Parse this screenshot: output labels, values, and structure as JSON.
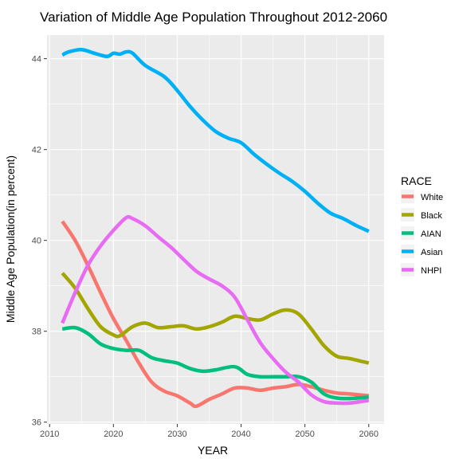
{
  "chart_data": {
    "type": "line",
    "title": "Variation of Middle Age Population Throughout 2012-2060",
    "xlabel": "YEAR",
    "ylabel": "Middle Age Population(in percent)",
    "xlim": [
      2009.6,
      2062.4
    ],
    "ylim": [
      35.96,
      44.52
    ],
    "x_ticks": [
      2010,
      2020,
      2030,
      2040,
      2050,
      2060
    ],
    "y_ticks": [
      36,
      38,
      40,
      42,
      44
    ],
    "x_tick_labels": [
      "2010",
      "2020",
      "2030",
      "2040",
      "2050",
      "2060"
    ],
    "y_tick_labels": [
      "36",
      "38",
      "40",
      "42",
      "44"
    ],
    "grid": true,
    "legend": {
      "title": "RACE",
      "position": "right"
    },
    "series": [
      {
        "name": "White",
        "color": "#F8766D",
        "points": [
          [
            2012,
            40.42
          ],
          [
            2014,
            40.0
          ],
          [
            2016,
            39.45
          ],
          [
            2018,
            38.85
          ],
          [
            2020,
            38.28
          ],
          [
            2022,
            37.8
          ],
          [
            2024,
            37.3
          ],
          [
            2026,
            36.88
          ],
          [
            2028,
            36.68
          ],
          [
            2030,
            36.58
          ],
          [
            2032,
            36.42
          ],
          [
            2033,
            36.35
          ],
          [
            2035,
            36.5
          ],
          [
            2037,
            36.62
          ],
          [
            2039,
            36.75
          ],
          [
            2041,
            36.75
          ],
          [
            2043,
            36.7
          ],
          [
            2045,
            36.75
          ],
          [
            2047,
            36.78
          ],
          [
            2049,
            36.83
          ],
          [
            2051,
            36.78
          ],
          [
            2053,
            36.7
          ],
          [
            2055,
            36.64
          ],
          [
            2057,
            36.62
          ],
          [
            2060,
            36.58
          ]
        ]
      },
      {
        "name": "Black",
        "color": "#A3A500",
        "points": [
          [
            2012,
            39.28
          ],
          [
            2014,
            38.95
          ],
          [
            2016,
            38.5
          ],
          [
            2018,
            38.1
          ],
          [
            2020,
            37.92
          ],
          [
            2021,
            37.9
          ],
          [
            2023,
            38.1
          ],
          [
            2025,
            38.18
          ],
          [
            2027,
            38.08
          ],
          [
            2029,
            38.1
          ],
          [
            2031,
            38.12
          ],
          [
            2033,
            38.05
          ],
          [
            2035,
            38.1
          ],
          [
            2037,
            38.2
          ],
          [
            2039,
            38.33
          ],
          [
            2041,
            38.28
          ],
          [
            2043,
            38.25
          ],
          [
            2045,
            38.38
          ],
          [
            2047,
            38.47
          ],
          [
            2049,
            38.38
          ],
          [
            2051,
            38.05
          ],
          [
            2053,
            37.68
          ],
          [
            2055,
            37.45
          ],
          [
            2057,
            37.4
          ],
          [
            2060,
            37.3
          ]
        ]
      },
      {
        "name": "AIAN",
        "color": "#00BF7D",
        "points": [
          [
            2012,
            38.05
          ],
          [
            2014,
            38.08
          ],
          [
            2016,
            37.95
          ],
          [
            2018,
            37.72
          ],
          [
            2020,
            37.62
          ],
          [
            2022,
            37.58
          ],
          [
            2024,
            37.58
          ],
          [
            2026,
            37.42
          ],
          [
            2028,
            37.35
          ],
          [
            2030,
            37.3
          ],
          [
            2032,
            37.18
          ],
          [
            2034,
            37.12
          ],
          [
            2036,
            37.15
          ],
          [
            2039,
            37.22
          ],
          [
            2041,
            37.05
          ],
          [
            2043,
            37.0
          ],
          [
            2045,
            37.0
          ],
          [
            2047,
            37.0
          ],
          [
            2049,
            37.0
          ],
          [
            2051,
            36.88
          ],
          [
            2053,
            36.62
          ],
          [
            2055,
            36.53
          ],
          [
            2057,
            36.52
          ],
          [
            2060,
            36.55
          ]
        ]
      },
      {
        "name": "Asian",
        "color": "#00B0F6",
        "points": [
          [
            2012,
            44.08
          ],
          [
            2013,
            44.15
          ],
          [
            2015,
            44.2
          ],
          [
            2017,
            44.12
          ],
          [
            2019,
            44.05
          ],
          [
            2020,
            44.12
          ],
          [
            2021,
            44.1
          ],
          [
            2022,
            44.15
          ],
          [
            2023,
            44.12
          ],
          [
            2025,
            43.85
          ],
          [
            2028,
            43.6
          ],
          [
            2030,
            43.3
          ],
          [
            2032,
            42.95
          ],
          [
            2034,
            42.65
          ],
          [
            2036,
            42.4
          ],
          [
            2038,
            42.25
          ],
          [
            2040,
            42.15
          ],
          [
            2042,
            41.9
          ],
          [
            2044,
            41.68
          ],
          [
            2046,
            41.48
          ],
          [
            2048,
            41.3
          ],
          [
            2050,
            41.08
          ],
          [
            2052,
            40.82
          ],
          [
            2054,
            40.6
          ],
          [
            2056,
            40.48
          ],
          [
            2058,
            40.33
          ],
          [
            2060,
            40.2
          ]
        ]
      },
      {
        "name": "NHPI",
        "color": "#E76BF3",
        "points": [
          [
            2012,
            38.18
          ],
          [
            2014,
            38.85
          ],
          [
            2016,
            39.45
          ],
          [
            2018,
            39.88
          ],
          [
            2020,
            40.22
          ],
          [
            2022,
            40.5
          ],
          [
            2023,
            40.48
          ],
          [
            2025,
            40.32
          ],
          [
            2027,
            40.08
          ],
          [
            2029,
            39.85
          ],
          [
            2031,
            39.58
          ],
          [
            2033,
            39.32
          ],
          [
            2035,
            39.15
          ],
          [
            2037,
            39.0
          ],
          [
            2039,
            38.75
          ],
          [
            2041,
            38.25
          ],
          [
            2043,
            37.75
          ],
          [
            2045,
            37.4
          ],
          [
            2047,
            37.1
          ],
          [
            2049,
            36.88
          ],
          [
            2051,
            36.6
          ],
          [
            2053,
            36.45
          ],
          [
            2055,
            36.42
          ],
          [
            2057,
            36.42
          ],
          [
            2060,
            36.48
          ]
        ]
      }
    ]
  }
}
